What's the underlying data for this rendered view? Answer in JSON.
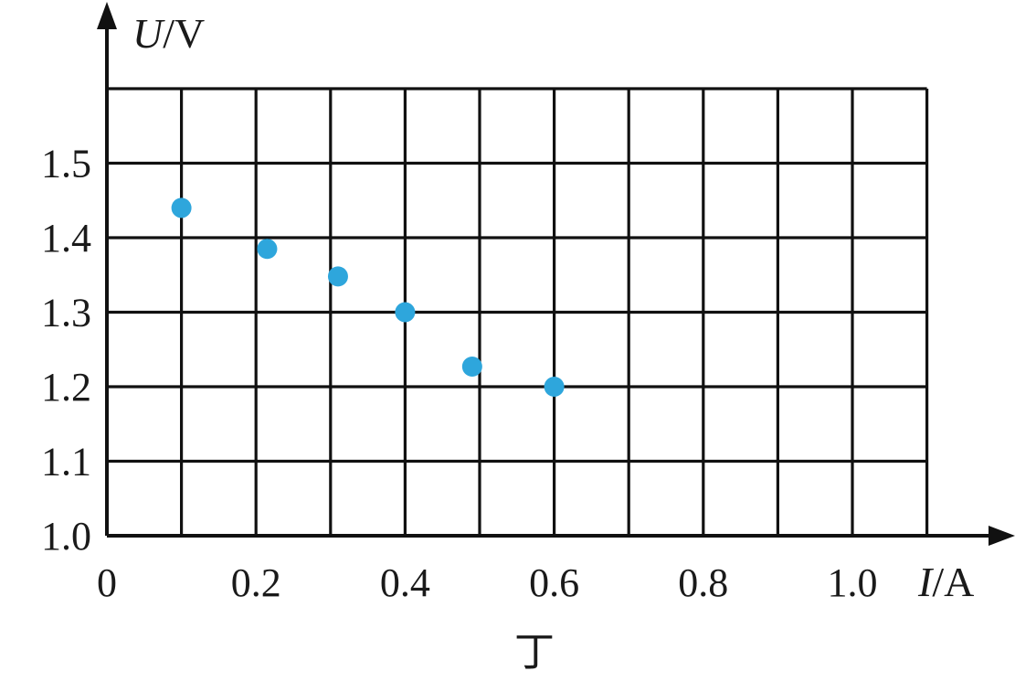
{
  "chart_data": {
    "type": "scatter",
    "x_axis": {
      "variable": "I",
      "unit": "/A",
      "ticks": [
        "0",
        "0.2",
        "0.4",
        "0.6",
        "0.8",
        "1.0"
      ],
      "range": [
        0,
        1.1
      ]
    },
    "y_axis": {
      "variable": "U",
      "unit": "/V",
      "ticks": [
        "1.0",
        "1.1",
        "1.2",
        "1.3",
        "1.4",
        "1.5"
      ],
      "range": [
        1.0,
        1.6
      ]
    },
    "points": [
      {
        "x": 0.1,
        "y": 1.44
      },
      {
        "x": 0.215,
        "y": 1.385
      },
      {
        "x": 0.31,
        "y": 1.348
      },
      {
        "x": 0.4,
        "y": 1.3
      },
      {
        "x": 0.49,
        "y": 1.227
      },
      {
        "x": 0.6,
        "y": 1.2
      }
    ],
    "grid": true,
    "caption": "丁"
  },
  "colors": {
    "point": "#2ea6dc",
    "grid": "#111111",
    "axis": "#111111"
  }
}
